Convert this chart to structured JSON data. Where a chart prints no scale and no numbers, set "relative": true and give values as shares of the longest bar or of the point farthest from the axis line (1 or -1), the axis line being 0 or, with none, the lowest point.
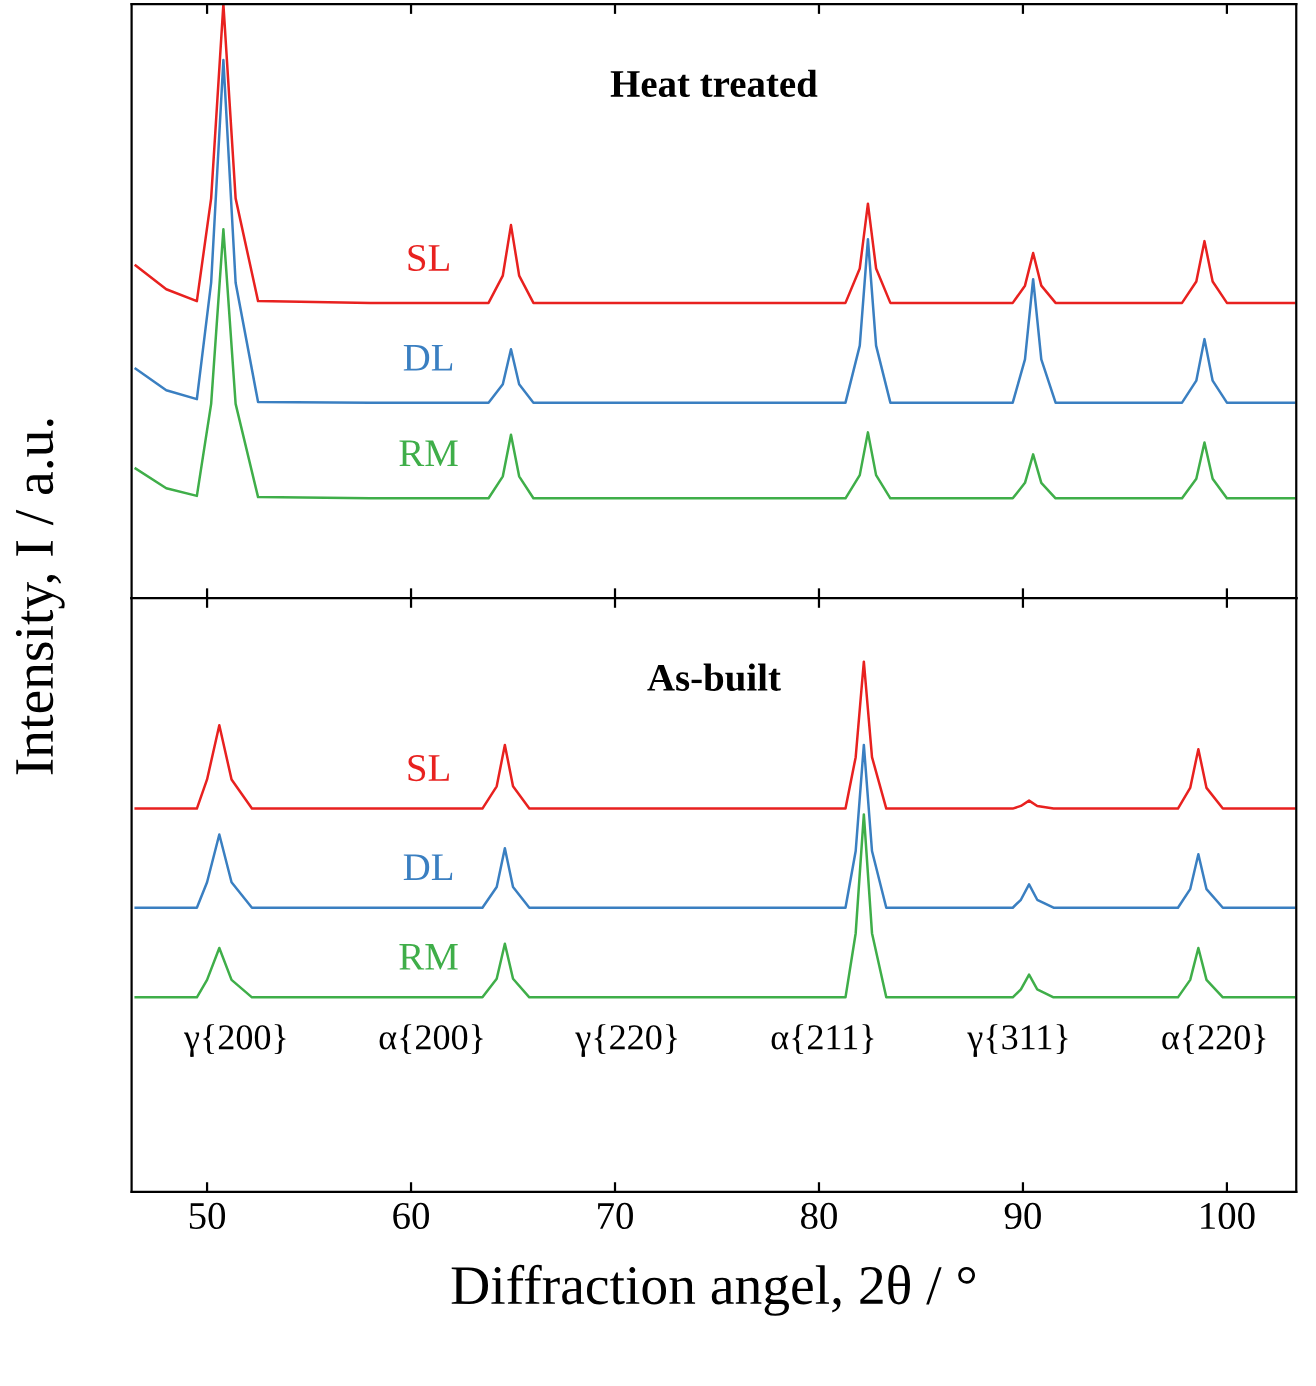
{
  "chart_data": [
    {
      "type": "line",
      "title": "Heat treated",
      "ylabel": "Intensity, I / a.u.",
      "relative": true,
      "legend": false,
      "grid": false,
      "marker": "none",
      "line_style": "solid",
      "tick_labels": false,
      "xlim": [
        46.3,
        103.4
      ],
      "xticks": [
        50,
        60,
        70,
        80,
        90,
        100
      ],
      "x": [
        46.5,
        48,
        49.5,
        50.2,
        50.8,
        51.4,
        52.5,
        58,
        63.8,
        64.5,
        64.9,
        65.3,
        66,
        73,
        81.3,
        82,
        82.4,
        82.8,
        83.5,
        87,
        89.5,
        90.1,
        90.5,
        90.9,
        91.6,
        95,
        97.8,
        98.5,
        98.9,
        99.3,
        100,
        103.3
      ],
      "series": [
        {
          "name": "SL",
          "color": "#e8211f",
          "values": [
            0.56,
            0.52,
            0.5,
            0.673,
            1.0,
            0.673,
            0.5,
            0.497,
            0.497,
            0.543,
            0.628,
            0.543,
            0.497,
            0.497,
            0.497,
            0.555,
            0.664,
            0.555,
            0.497,
            0.497,
            0.497,
            0.526,
            0.581,
            0.526,
            0.497,
            0.497,
            0.497,
            0.533,
            0.601,
            0.533,
            0.497,
            0.497
          ]
        },
        {
          "name": "DL",
          "color": "#3a7fc1",
          "values": [
            0.386,
            0.35,
            0.335,
            0.531,
            0.906,
            0.531,
            0.33,
            0.329,
            0.329,
            0.36,
            0.419,
            0.36,
            0.329,
            0.329,
            0.329,
            0.425,
            0.604,
            0.425,
            0.329,
            0.329,
            0.329,
            0.402,
            0.537,
            0.402,
            0.329,
            0.329,
            0.329,
            0.366,
            0.436,
            0.366,
            0.329,
            0.329
          ]
        },
        {
          "name": "RM",
          "color": "#3fae49",
          "values": [
            0.218,
            0.185,
            0.172,
            0.327,
            0.621,
            0.327,
            0.17,
            0.168,
            0.168,
            0.205,
            0.275,
            0.205,
            0.168,
            0.168,
            0.168,
            0.207,
            0.279,
            0.207,
            0.168,
            0.168,
            0.168,
            0.194,
            0.242,
            0.194,
            0.168,
            0.168,
            0.168,
            0.201,
            0.262,
            0.201,
            0.168,
            0.168
          ]
        }
      ]
    },
    {
      "type": "line",
      "title": "As-built",
      "xlabel": "Diffraction angel, 2θ / °",
      "relative": true,
      "legend": false,
      "grid": false,
      "marker": "none",
      "line_style": "solid",
      "tick_labels": "x",
      "xlim": [
        46.3,
        103.4
      ],
      "xticks": [
        50,
        60,
        70,
        80,
        90,
        100
      ],
      "x": [
        46.5,
        49.5,
        50.0,
        50.6,
        51.2,
        52.2,
        58,
        63.5,
        64.2,
        64.6,
        65.0,
        65.8,
        73,
        81.3,
        81.8,
        82.2,
        82.6,
        83.3,
        87,
        89.5,
        89.9,
        90.3,
        90.7,
        91.5,
        95,
        97.6,
        98.2,
        98.6,
        99.0,
        99.8,
        103.3
      ],
      "series": [
        {
          "name": "SL",
          "color": "#e8211f",
          "values": [
            0.723,
            0.723,
            0.778,
            0.88,
            0.778,
            0.723,
            0.723,
            0.723,
            0.765,
            0.843,
            0.765,
            0.723,
            0.723,
            0.723,
            0.82,
            1.0,
            0.82,
            0.723,
            0.723,
            0.723,
            0.728,
            0.738,
            0.728,
            0.723,
            0.723,
            0.723,
            0.762,
            0.835,
            0.762,
            0.723,
            0.723
          ]
        },
        {
          "name": "DL",
          "color": "#3a7fc1",
          "values": [
            0.536,
            0.536,
            0.584,
            0.674,
            0.584,
            0.536,
            0.536,
            0.536,
            0.575,
            0.648,
            0.575,
            0.536,
            0.536,
            0.536,
            0.643,
            0.843,
            0.643,
            0.536,
            0.536,
            0.536,
            0.551,
            0.58,
            0.551,
            0.536,
            0.536,
            0.536,
            0.571,
            0.637,
            0.571,
            0.536,
            0.536
          ]
        },
        {
          "name": "RM",
          "color": "#3fae49",
          "values": [
            0.367,
            0.367,
            0.4,
            0.46,
            0.4,
            0.367,
            0.367,
            0.367,
            0.402,
            0.468,
            0.402,
            0.367,
            0.367,
            0.367,
            0.488,
            0.712,
            0.488,
            0.367,
            0.367,
            0.367,
            0.382,
            0.41,
            0.382,
            0.367,
            0.367,
            0.367,
            0.4,
            0.46,
            0.4,
            0.367,
            0.367
          ]
        }
      ],
      "annotations": [
        "γ{200}",
        "α{200}",
        "γ{220}",
        "α{211}",
        "γ{311}",
        "α{220}"
      ]
    }
  ]
}
